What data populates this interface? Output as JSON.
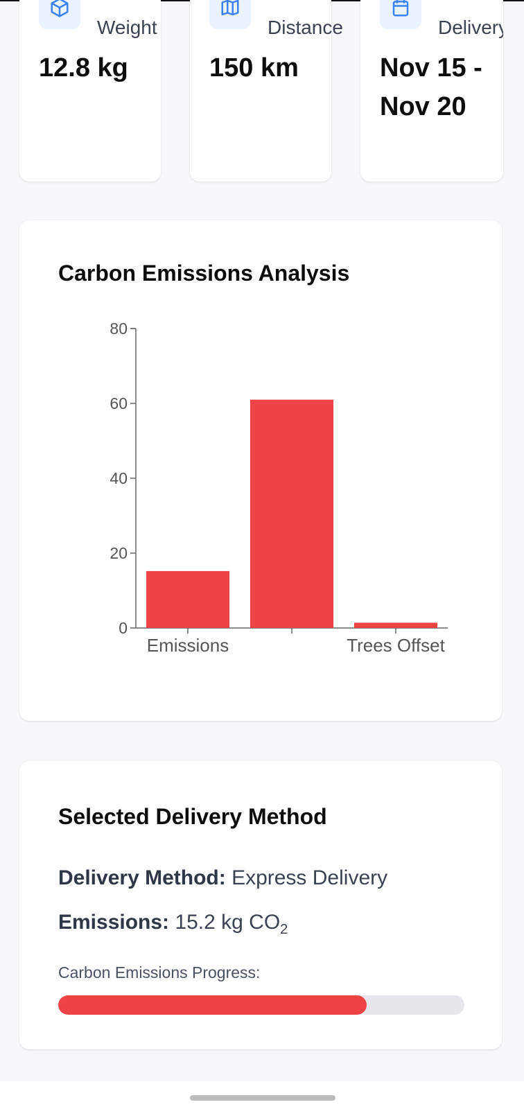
{
  "stats": [
    {
      "icon": "package-icon",
      "label": "Weight",
      "value": "12.8 kg"
    },
    {
      "icon": "map-icon",
      "label": "Distance",
      "value": "150 km"
    },
    {
      "icon": "calendar-icon",
      "label": "Delivery",
      "value": "Nov 15 - Nov 20"
    }
  ],
  "chart_section": {
    "title": "Carbon Emissions Analysis"
  },
  "chart_data": {
    "type": "bar",
    "categories": [
      "Emissions",
      "",
      "Trees Offset"
    ],
    "values": [
      15.2,
      61,
      1.4
    ],
    "ylim": [
      0,
      80
    ],
    "yticks": [
      0,
      20,
      40,
      60,
      80
    ],
    "color": "#ef4444",
    "title": "",
    "xlabel": "",
    "ylabel": ""
  },
  "method": {
    "title": "Selected Delivery Method",
    "method_label": "Delivery Method:",
    "method_value": "Express Delivery",
    "emissions_label": "Emissions:",
    "emissions_value": "15.2 kg CO",
    "emissions_sub": "2",
    "progress_label": "Carbon Emissions Progress:",
    "progress_fraction": 0.76,
    "progress_color": "#ef4444"
  }
}
